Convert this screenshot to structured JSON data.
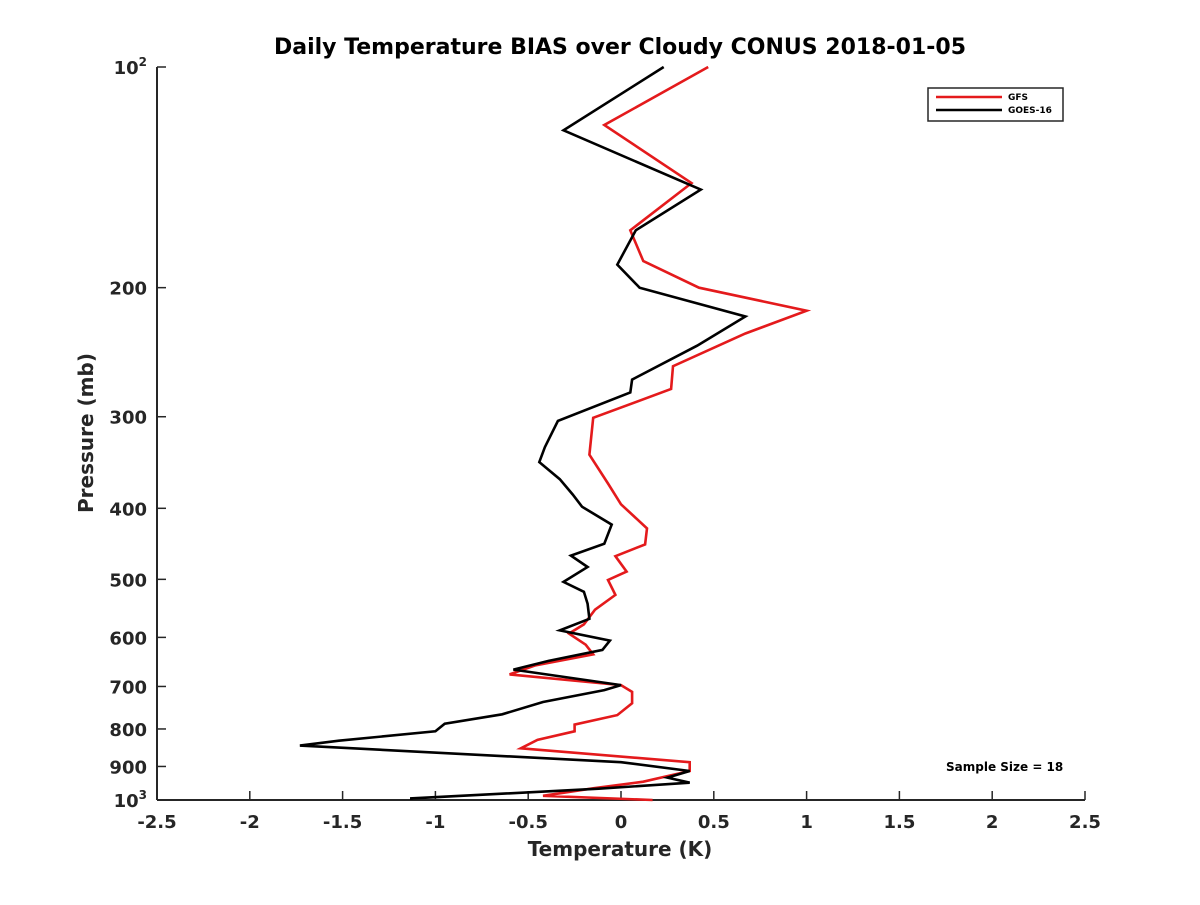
{
  "chart_data": {
    "type": "line",
    "title": "Daily Temperature BIAS over Cloudy CONUS 2018-01-05",
    "xlabel": "Temperature (K)",
    "ylabel": "Pressure (mb)",
    "xlim": [
      -2.5,
      2.5
    ],
    "ylim": [
      100,
      1000
    ],
    "y_scale": "log",
    "y_reversed": true,
    "grid": false,
    "legend_position": "top-right",
    "x_ticks": [
      {
        "v": -2.5,
        "label": "-2.5"
      },
      {
        "v": -2,
        "label": "-2"
      },
      {
        "v": -1.5,
        "label": "-1.5"
      },
      {
        "v": -1,
        "label": "-1"
      },
      {
        "v": -0.5,
        "label": "-0.5"
      },
      {
        "v": 0,
        "label": "0"
      },
      {
        "v": 0.5,
        "label": "0.5"
      },
      {
        "v": 1,
        "label": "1"
      },
      {
        "v": 1.5,
        "label": "1.5"
      },
      {
        "v": 2,
        "label": "2"
      },
      {
        "v": 2.5,
        "label": "2.5"
      }
    ],
    "y_ticks": [
      {
        "v": 100,
        "base": "10",
        "exp": "2"
      },
      {
        "v": 200,
        "label": "200"
      },
      {
        "v": 300,
        "label": "300"
      },
      {
        "v": 400,
        "label": "400"
      },
      {
        "v": 500,
        "label": "500"
      },
      {
        "v": 600,
        "label": "600"
      },
      {
        "v": 700,
        "label": "700"
      },
      {
        "v": 800,
        "label": "800"
      },
      {
        "v": 900,
        "label": "900"
      },
      {
        "v": 1000,
        "base": "10",
        "exp": "3"
      }
    ],
    "series": [
      {
        "name": "GFS",
        "color": "#e41a1c",
        "points": [
          [
            0.47,
            100
          ],
          [
            -0.09,
            120
          ],
          [
            0.38,
            144
          ],
          [
            0.05,
            167
          ],
          [
            0.12,
            184
          ],
          [
            0.42,
            200
          ],
          [
            1.0,
            215
          ],
          [
            0.67,
            231
          ],
          [
            0.28,
            256
          ],
          [
            0.27,
            275
          ],
          [
            -0.15,
            301
          ],
          [
            -0.17,
            338
          ],
          [
            -0.07,
            370
          ],
          [
            0.0,
            395
          ],
          [
            0.14,
            426
          ],
          [
            0.13,
            448
          ],
          [
            -0.03,
            465
          ],
          [
            0.03,
            488
          ],
          [
            -0.07,
            501
          ],
          [
            -0.03,
            525
          ],
          [
            -0.14,
            550
          ],
          [
            -0.2,
            576
          ],
          [
            -0.28,
            593
          ],
          [
            -0.19,
            614
          ],
          [
            -0.15,
            633
          ],
          [
            -0.46,
            655
          ],
          [
            -0.6,
            674
          ],
          [
            0.0,
            697
          ],
          [
            0.06,
            712
          ],
          [
            0.06,
            738
          ],
          [
            -0.02,
            766
          ],
          [
            -0.25,
            789
          ],
          [
            -0.25,
            806
          ],
          [
            -0.45,
            828
          ],
          [
            -0.54,
            850
          ],
          [
            0.37,
            888
          ],
          [
            0.37,
            913
          ],
          [
            0.12,
            944
          ],
          [
            -0.15,
            964
          ],
          [
            -0.42,
            987
          ],
          [
            0.17,
            1000
          ]
        ]
      },
      {
        "name": "GOES-16",
        "color": "#000000",
        "points": [
          [
            0.23,
            100
          ],
          [
            -0.31,
            122
          ],
          [
            0.43,
            147
          ],
          [
            0.08,
            167
          ],
          [
            -0.02,
            186
          ],
          [
            0.1,
            200
          ],
          [
            0.67,
            219
          ],
          [
            0.41,
            240
          ],
          [
            0.06,
            267
          ],
          [
            0.05,
            278
          ],
          [
            -0.34,
            304
          ],
          [
            -0.41,
            330
          ],
          [
            -0.44,
            346
          ],
          [
            -0.33,
            365
          ],
          [
            -0.26,
            383
          ],
          [
            -0.21,
            398
          ],
          [
            -0.05,
            421
          ],
          [
            -0.09,
            447
          ],
          [
            -0.27,
            464
          ],
          [
            -0.18,
            481
          ],
          [
            -0.31,
            504
          ],
          [
            -0.2,
            520
          ],
          [
            -0.18,
            540
          ],
          [
            -0.17,
            566
          ],
          [
            -0.33,
            587
          ],
          [
            -0.06,
            606
          ],
          [
            -0.1,
            624
          ],
          [
            -0.39,
            646
          ],
          [
            -0.58,
            664
          ],
          [
            0.0,
            697
          ],
          [
            -0.09,
            708
          ],
          [
            -0.42,
            735
          ],
          [
            -0.64,
            764
          ],
          [
            -0.95,
            787
          ],
          [
            -1.0,
            806
          ],
          [
            -1.52,
            830
          ],
          [
            -1.73,
            843
          ],
          [
            0.0,
            888
          ],
          [
            0.37,
            913
          ],
          [
            0.25,
            932
          ],
          [
            0.37,
            947
          ],
          [
            -0.12,
            965
          ],
          [
            -1.13,
            995
          ],
          [
            -1.13,
            1000
          ]
        ]
      }
    ],
    "annotation": "Sample Size = 18"
  }
}
